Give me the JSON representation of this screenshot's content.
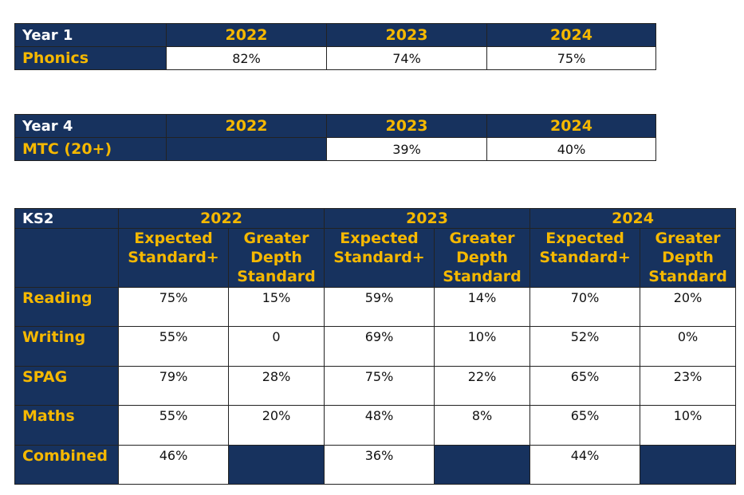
{
  "colors": {
    "header_bg": "#17325e",
    "accent_yellow": "#f5b800",
    "header_text": "#ffffff",
    "cell_bg": "#ffffff"
  },
  "year1": {
    "title": "Year 1",
    "years": [
      "2022",
      "2023",
      "2024"
    ],
    "row_label": "Phonics",
    "values": [
      "82%",
      "74%",
      "75%"
    ]
  },
  "year4": {
    "title": "Year 4",
    "years": [
      "2022",
      "2023",
      "2024"
    ],
    "row_label": "MTC (20+)",
    "values": [
      "",
      "39%",
      "40%"
    ]
  },
  "ks2": {
    "title": "KS2",
    "years": [
      "2022",
      "2023",
      "2024"
    ],
    "sub_expected": [
      "Expected",
      "Standard+"
    ],
    "sub_greater": [
      "Greater",
      "Depth",
      "Standard"
    ],
    "rows": [
      {
        "label": "Reading",
        "values": [
          "75%",
          "15%",
          "59%",
          "14%",
          "70%",
          "20%"
        ]
      },
      {
        "label": "Writing",
        "values": [
          "55%",
          "0",
          "69%",
          "10%",
          "52%",
          "0%"
        ]
      },
      {
        "label": "SPAG",
        "values": [
          "79%",
          "28%",
          "75%",
          "22%",
          "65%",
          "23%"
        ]
      },
      {
        "label": "Maths",
        "values": [
          "55%",
          "20%",
          "48%",
          "8%",
          "65%",
          "10%"
        ]
      },
      {
        "label": "Combined",
        "values": [
          "46%",
          "",
          "36%",
          "",
          "44%",
          ""
        ]
      }
    ]
  }
}
